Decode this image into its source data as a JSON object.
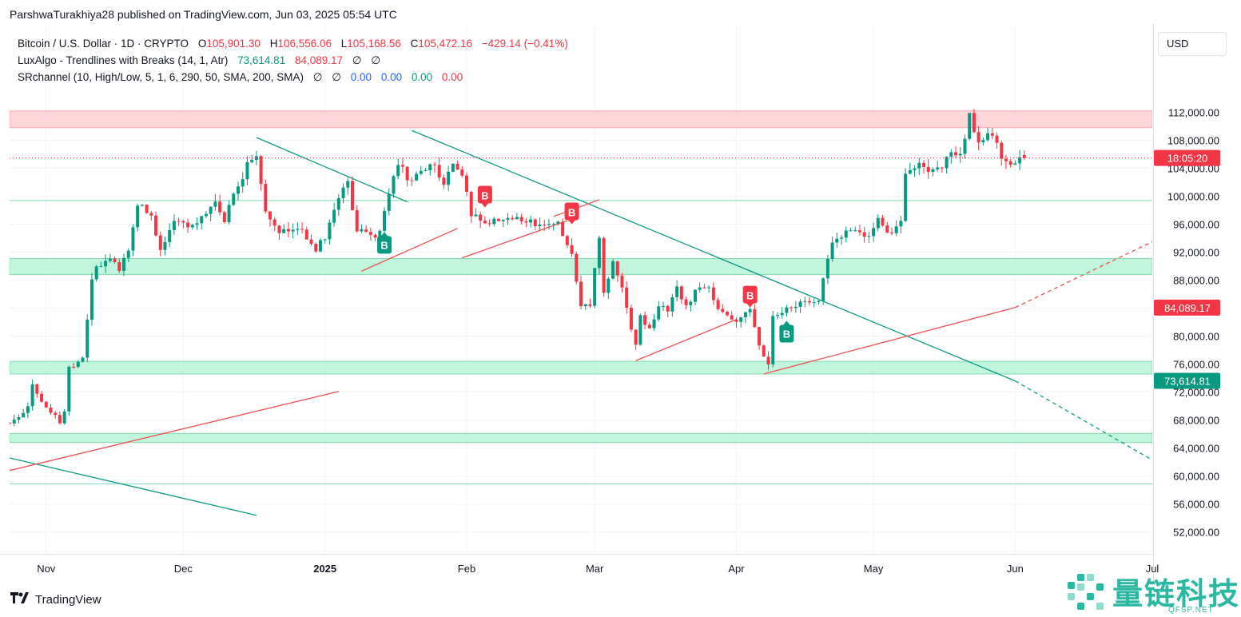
{
  "header": {
    "credit": "ParshwaTurakhiya28 published on TradingView.com, Jun 03, 2025 05:54 UTC"
  },
  "legend": {
    "symbol": "Bitcoin / U.S. Dollar · 1D · CRYPTO",
    "o_label": "O",
    "o_value": "105,901.30",
    "h_label": "H",
    "h_value": "106,556.06",
    "l_label": "L",
    "l_value": "105,168.56",
    "c_label": "C",
    "c_value": "105,472.16",
    "change": "−429.14 (−0.41%)",
    "luxalgo_name": "LuxAlgo - Trendlines with Breaks (14, 1, Atr)",
    "luxalgo_v1": "73,614.81",
    "luxalgo_v2": "84,089.17",
    "luxalgo_v3": "∅",
    "luxalgo_v4": "∅",
    "sr_name": "SRchannel (10, High/Low, 5, 1, 6, 290, 50, SMA, 200, SMA)",
    "sr_v1": "∅",
    "sr_v2": "∅",
    "sr_v3": "0.00",
    "sr_v4": "0.00",
    "sr_v5": "0.00",
    "sr_v6": "0.00"
  },
  "currency_button": "USD",
  "footer": {
    "logo_text": "TradingView"
  },
  "watermark": {
    "text": "量链科技",
    "sub": "QFSP.NET"
  },
  "colors": {
    "up": "#089981",
    "down": "#f23645",
    "zone_green": "#b2f2d4",
    "zone_red": "#ffcdd2"
  },
  "chart_data": {
    "type": "candlestick",
    "symbol": "BTCUSD",
    "interval": "1D",
    "ylim": [
      49000,
      118000
    ],
    "y_ticks": [
      112000,
      108000,
      104000,
      100000,
      96000,
      92000,
      88000,
      84000,
      80000,
      76000,
      72000,
      68000,
      64000,
      60000,
      56000,
      52000
    ],
    "y_tick_labels": [
      "112,000.00",
      "108,000.00",
      "104,000.00",
      "100,000.00",
      "96,000.00",
      "92,000.00",
      "88,000.00",
      "84,000.00",
      "80,000.00",
      "76,000.00",
      "72,000.00",
      "68,000.00",
      "64,000.00",
      "60,000.00",
      "56,000.00",
      "52,000.00"
    ],
    "x_tick_labels": [
      {
        "label": "Nov",
        "date": "2024-11-01",
        "bold": false
      },
      {
        "label": "Dec",
        "date": "2024-12-01",
        "bold": false
      },
      {
        "label": "2025",
        "date": "2025-01-01",
        "bold": true
      },
      {
        "label": "Feb",
        "date": "2025-02-01",
        "bold": false
      },
      {
        "label": "Mar",
        "date": "2025-03-01",
        "bold": false
      },
      {
        "label": "Apr",
        "date": "2025-04-01",
        "bold": false
      },
      {
        "label": "May",
        "date": "2025-05-01",
        "bold": false
      },
      {
        "label": "Jun",
        "date": "2025-06-01",
        "bold": false
      },
      {
        "label": "Jul",
        "date": "2025-07-01",
        "bold": false
      }
    ],
    "x_range": [
      "2024-10-24",
      "2025-07-01"
    ],
    "price_labels": [
      {
        "text": "18:05:20",
        "price": 105472,
        "color": "#f23645"
      },
      {
        "text": "84,089.17",
        "price": 84089,
        "color": "#f23645"
      },
      {
        "text": "73,614.81",
        "price": 73615,
        "color": "#089981"
      }
    ],
    "current_price": 105472.16,
    "sr_zones": [
      {
        "from": 109800,
        "to": 112200,
        "color": "red"
      },
      {
        "from": 88800,
        "to": 91100,
        "color": "green"
      },
      {
        "from": 74600,
        "to": 76400,
        "color": "green"
      },
      {
        "from": 64800,
        "to": 66100,
        "color": "green"
      }
    ],
    "sr_lines": [
      99400,
      58900
    ],
    "trendlines": [
      {
        "color": "teal",
        "p1": [
          "2024-12-17",
          108400
        ],
        "p2": [
          "2025-01-19",
          99200
        ],
        "dashed": false
      },
      {
        "color": "teal",
        "p1": [
          "2025-01-20",
          109400
        ],
        "p2": [
          "2025-06-01",
          73600
        ],
        "dashed": false
      },
      {
        "color": "teal",
        "p1": [
          "2025-06-01",
          73600
        ],
        "p2": [
          "2025-07-01",
          62300
        ],
        "dashed": true
      },
      {
        "color": "teal",
        "p1": [
          "2024-10-24",
          62600
        ],
        "p2": [
          "2024-12-17",
          54400
        ],
        "dashed": false
      },
      {
        "color": "red",
        "p1": [
          "2024-10-24",
          60800
        ],
        "p2": [
          "2025-01-04",
          72100
        ],
        "dashed": false
      },
      {
        "color": "red",
        "p1": [
          "2025-01-09",
          89300
        ],
        "p2": [
          "2025-01-30",
          95400
        ],
        "dashed": false
      },
      {
        "color": "red",
        "p1": [
          "2025-01-31",
          91200
        ],
        "p2": [
          "2025-02-23",
          96500
        ],
        "dashed": false
      },
      {
        "color": "red",
        "p1": [
          "2025-02-20",
          97100
        ],
        "p2": [
          "2025-03-02",
          99500
        ],
        "dashed": false
      },
      {
        "color": "red",
        "p1": [
          "2025-03-10",
          76500
        ],
        "p2": [
          "2025-04-01",
          82400
        ],
        "dashed": false
      },
      {
        "color": "red",
        "p1": [
          "2025-04-07",
          74600
        ],
        "p2": [
          "2025-06-01",
          84100
        ],
        "dashed": false
      },
      {
        "color": "red",
        "p1": [
          "2025-06-01",
          84100
        ],
        "p2": [
          "2025-07-01",
          93500
        ],
        "dashed": true
      }
    ],
    "break_labels": [
      {
        "date": "2025-01-14",
        "price": 95000,
        "text": "B",
        "color": "#089981",
        "pointer": "up"
      },
      {
        "date": "2025-02-05",
        "price": 98300,
        "text": "B",
        "color": "#f23645",
        "pointer": "down"
      },
      {
        "date": "2025-02-24",
        "price": 95900,
        "text": "B",
        "color": "#f23645",
        "pointer": "down"
      },
      {
        "date": "2025-04-04",
        "price": 84000,
        "text": "B",
        "color": "#f23645",
        "pointer": "down"
      },
      {
        "date": "2025-04-12",
        "price": 82300,
        "text": "B",
        "color": "#089981",
        "pointer": "up"
      }
    ],
    "anchors": [
      [
        "2024-10-24",
        67600
      ],
      [
        "2024-10-28",
        69800
      ],
      [
        "2024-10-29",
        72800
      ],
      [
        "2024-10-31",
        70300
      ],
      [
        "2024-11-04",
        67800
      ],
      [
        "2024-11-05",
        69300
      ],
      [
        "2024-11-06",
        75600
      ],
      [
        "2024-11-09",
        76500
      ],
      [
        "2024-11-11",
        88600
      ],
      [
        "2024-11-13",
        90300
      ],
      [
        "2024-11-15",
        91000
      ],
      [
        "2024-11-17",
        89800
      ],
      [
        "2024-11-19",
        92300
      ],
      [
        "2024-11-21",
        98700
      ],
      [
        "2024-11-24",
        97800
      ],
      [
        "2024-11-26",
        92000
      ],
      [
        "2024-11-29",
        96400
      ],
      [
        "2024-12-03",
        95900
      ],
      [
        "2024-12-05",
        97000
      ],
      [
        "2024-12-08",
        99500
      ],
      [
        "2024-12-10",
        96800
      ],
      [
        "2024-12-12",
        100000
      ],
      [
        "2024-12-15",
        104300
      ],
      [
        "2024-12-17",
        106000
      ],
      [
        "2024-12-19",
        97500
      ],
      [
        "2024-12-22",
        94800
      ],
      [
        "2024-12-26",
        95800
      ],
      [
        "2024-12-30",
        92500
      ],
      [
        "2025-01-01",
        94400
      ],
      [
        "2025-01-03",
        98200
      ],
      [
        "2025-01-06",
        102000
      ],
      [
        "2025-01-08",
        95000
      ],
      [
        "2025-01-10",
        94500
      ],
      [
        "2025-01-13",
        94500
      ],
      [
        "2025-01-15",
        100500
      ],
      [
        "2025-01-17",
        104500
      ],
      [
        "2025-01-20",
        102000
      ],
      [
        "2025-01-22",
        103700
      ],
      [
        "2025-01-24",
        104800
      ],
      [
        "2025-01-27",
        102000
      ],
      [
        "2025-01-29",
        104700
      ],
      [
        "2025-01-31",
        102400
      ],
      [
        "2025-02-02",
        97700
      ],
      [
        "2025-02-04",
        96600
      ],
      [
        "2025-02-07",
        96500
      ],
      [
        "2025-02-10",
        97400
      ],
      [
        "2025-02-13",
        96500
      ],
      [
        "2025-02-18",
        95700
      ],
      [
        "2025-02-21",
        96100
      ],
      [
        "2025-02-24",
        91500
      ],
      [
        "2025-02-26",
        84300
      ],
      [
        "2025-02-28",
        84400
      ],
      [
        "2025-03-02",
        94200
      ],
      [
        "2025-03-03",
        86100
      ],
      [
        "2025-03-05",
        90500
      ],
      [
        "2025-03-07",
        86700
      ],
      [
        "2025-03-10",
        78600
      ],
      [
        "2025-03-11",
        82900
      ],
      [
        "2025-03-13",
        80900
      ],
      [
        "2025-03-15",
        84300
      ],
      [
        "2025-03-17",
        84000
      ],
      [
        "2025-03-19",
        86800
      ],
      [
        "2025-03-21",
        84200
      ],
      [
        "2025-03-24",
        87500
      ],
      [
        "2025-03-26",
        86900
      ],
      [
        "2025-03-28",
        84300
      ],
      [
        "2025-03-31",
        82500
      ],
      [
        "2025-04-02",
        82500
      ],
      [
        "2025-04-04",
        83800
      ],
      [
        "2025-04-06",
        78300
      ],
      [
        "2025-04-08",
        76300
      ],
      [
        "2025-04-09",
        82600
      ],
      [
        "2025-04-11",
        83500
      ],
      [
        "2025-04-14",
        84600
      ],
      [
        "2025-04-17",
        84900
      ],
      [
        "2025-04-19",
        85200
      ],
      [
        "2025-04-22",
        93400
      ],
      [
        "2025-04-25",
        94700
      ],
      [
        "2025-04-28",
        95000
      ],
      [
        "2025-04-30",
        94200
      ],
      [
        "2025-05-02",
        96500
      ],
      [
        "2025-05-05",
        94700
      ],
      [
        "2025-05-07",
        97000
      ],
      [
        "2025-05-08",
        103300
      ],
      [
        "2025-05-11",
        104500
      ],
      [
        "2025-05-13",
        104100
      ],
      [
        "2025-05-15",
        103600
      ],
      [
        "2025-05-18",
        106400
      ],
      [
        "2025-05-20",
        106000
      ],
      [
        "2025-05-22",
        111600
      ],
      [
        "2025-05-24",
        107400
      ],
      [
        "2025-05-27",
        108900
      ],
      [
        "2025-05-29",
        105700
      ],
      [
        "2025-05-31",
        104600
      ],
      [
        "2025-06-02",
        105900
      ],
      [
        "2025-06-03",
        105472
      ]
    ]
  }
}
